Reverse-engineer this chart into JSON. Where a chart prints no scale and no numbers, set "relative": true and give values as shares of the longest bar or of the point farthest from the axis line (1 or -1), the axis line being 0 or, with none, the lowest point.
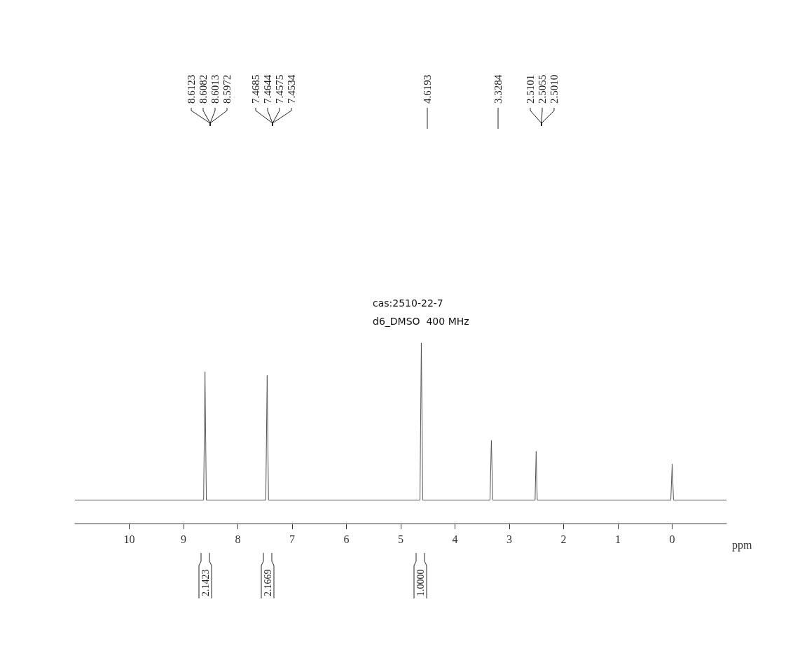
{
  "chart_data": {
    "type": "line",
    "relative": true,
    "xlabel": "ppm",
    "xlim": [
      11,
      -1
    ],
    "xticks": [
      10,
      9,
      8,
      7,
      6,
      5,
      4,
      3,
      2,
      1,
      0
    ],
    "grid": false,
    "marker": "none",
    "line_style": "solid",
    "series": [
      {
        "color": "#555555",
        "x": [
          11,
          8.63,
          8.605,
          8.58,
          7.485,
          7.46,
          7.435,
          4.645,
          4.62,
          4.595,
          3.355,
          3.33,
          3.305,
          2.525,
          2.505,
          2.485,
          0.025,
          0,
          -0.025,
          -1
        ],
        "values": [
          0.13,
          0.13,
          0.84,
          0.13,
          0.13,
          0.82,
          0.13,
          0.13,
          1,
          0.13,
          0.13,
          0.46,
          0.13,
          0.13,
          0.4,
          0.13,
          0.13,
          0.33,
          0.13,
          0.13
        ]
      }
    ],
    "annotations": [
      "cas:2510-22-7",
      "d6_DMSO  400 MHz",
      "8.6123",
      "8.6082",
      "8.6013",
      "8.5972",
      "7.4685",
      "7.4644",
      "7.4575",
      "7.4534",
      "4.6193",
      "3.3284",
      "2.5101",
      "2.5055",
      "2.5010",
      "2.1423",
      "2.1669",
      "1.0000"
    ]
  }
}
